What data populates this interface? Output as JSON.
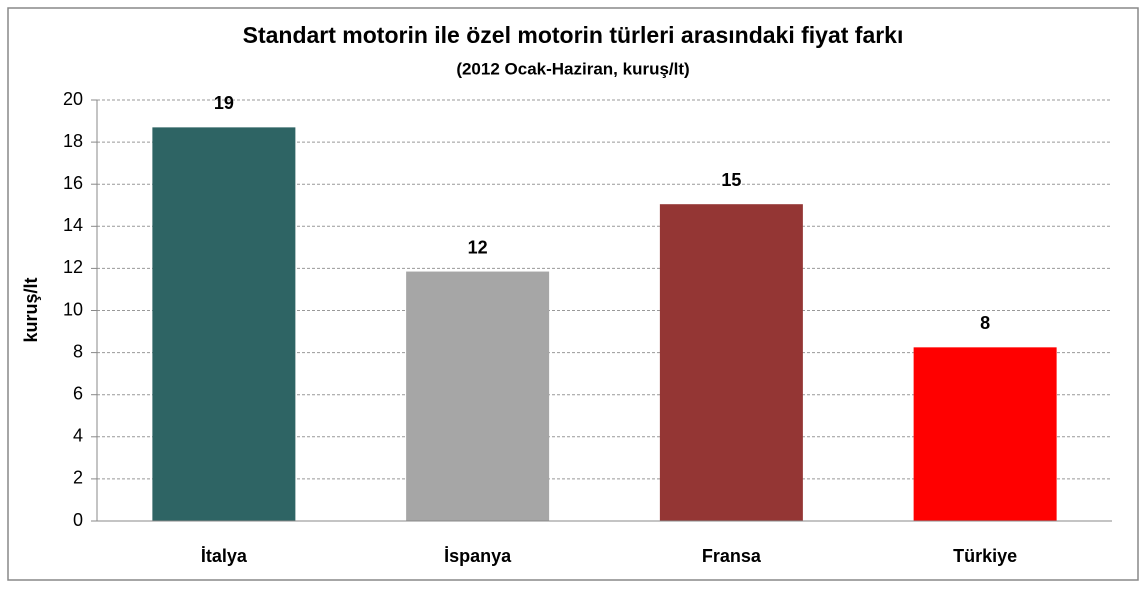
{
  "chart_data": {
    "type": "bar",
    "title": "Standart motorin ile özel motorin türleri arasındaki fiyat farkı",
    "subtitle": "(2012  Ocak-Haziran, kuruş/lt)",
    "y_label": "kuruş/lt",
    "categories": [
      "İtalya",
      "İspanya",
      "Fransa",
      "Türkiye"
    ],
    "values": [
      18.7,
      11.85,
      15.05,
      8.25
    ],
    "value_labels": [
      "19",
      "12",
      "15",
      "8"
    ],
    "colors": [
      "#2e6464",
      "#a6a6a6",
      "#943634",
      "#ff0000"
    ],
    "ylim": [
      0,
      20
    ],
    "yticks": [
      0,
      2,
      4,
      6,
      8,
      10,
      12,
      14,
      16,
      18,
      20
    ],
    "grid": true
  }
}
